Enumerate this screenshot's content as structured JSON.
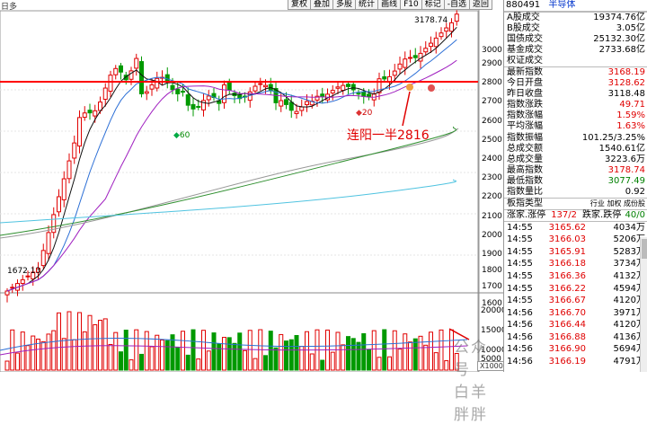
{
  "toolbar": {
    "items": [
      "复权",
      "叠加",
      "多股",
      "统计",
      "画线",
      "F10",
      "标记",
      "-自选",
      "返回"
    ]
  },
  "chart": {
    "top_left_label": "日多",
    "high_label": "3178.74",
    "low_label": "1672.13",
    "annotation": "连阳一半2816",
    "marks": [
      "60",
      "20"
    ],
    "volume_unit": "X1000",
    "price_ticks": [
      "3000",
      "2900",
      "2800",
      "2700",
      "2600",
      "2500",
      "2400",
      "2300",
      "2200",
      "2100",
      "2000",
      "1900",
      "1800",
      "1700",
      "1600"
    ],
    "volume_ticks": [
      "20000",
      "15000",
      "10000",
      "5000"
    ],
    "watermark": "公众号 · 白羊胖胖",
    "colors": {
      "up": "#e00000",
      "down": "#009900",
      "ma5": "#111111",
      "ma10": "#2c6fd6",
      "ma20": "#a020c0",
      "ma60": "#999999",
      "ma120": "#2f8f2f",
      "ma250": "#4fc3e0",
      "ref_line": "#ff0000"
    }
  },
  "panel": {
    "code": "880491",
    "name": "半导体",
    "rows1": [
      {
        "label": "A股成交",
        "value": "19374.76亿",
        "cls": ""
      },
      {
        "label": "B股成交",
        "value": "3.05亿",
        "cls": ""
      },
      {
        "label": "国债成交",
        "value": "25132.30亿",
        "cls": ""
      },
      {
        "label": "基金成交",
        "value": "2733.68亿",
        "cls": ""
      },
      {
        "label": "权证成交",
        "value": "",
        "cls": ""
      }
    ],
    "rows2": [
      {
        "label": "最新指数",
        "value": "3168.19",
        "cls": "red"
      },
      {
        "label": "今日开盘",
        "value": "3128.62",
        "cls": "red"
      },
      {
        "label": "昨日收盘",
        "value": "3118.48",
        "cls": ""
      },
      {
        "label": "指数涨跌",
        "value": "49.71",
        "cls": "red"
      },
      {
        "label": "指数涨幅",
        "value": "1.59%",
        "cls": "red"
      },
      {
        "label": "平均涨幅",
        "value": "1.63%",
        "cls": "red"
      },
      {
        "label": "指数振幅",
        "value": "101.25/3.25%",
        "cls": ""
      },
      {
        "label": "总成交额",
        "value": "1540.61亿",
        "cls": ""
      },
      {
        "label": "总成交量",
        "value": "3223.6万",
        "cls": ""
      },
      {
        "label": "最高指数",
        "value": "3178.74",
        "cls": "red"
      },
      {
        "label": "最低指数",
        "value": "3077.49",
        "cls": "green"
      },
      {
        "label": "指数量比",
        "value": "0.92",
        "cls": ""
      }
    ],
    "board_type": {
      "label": "板指类型",
      "options": "行业 加权 成份股"
    },
    "stats": {
      "rise_label": "涨家.涨停",
      "rise_value": "137/2",
      "fall_label": "跌家.跌停",
      "fall_value": "40/0"
    },
    "ticks": [
      {
        "time": "14:55",
        "price": "3165.62",
        "vol": "4034万"
      },
      {
        "time": "14:55",
        "price": "3166.03",
        "vol": "5206万"
      },
      {
        "time": "14:55",
        "price": "3165.91",
        "vol": "5283万"
      },
      {
        "time": "14:55",
        "price": "3166.18",
        "vol": "3734万"
      },
      {
        "time": "14:55",
        "price": "3166.36",
        "vol": "4132万"
      },
      {
        "time": "14:55",
        "price": "3166.22",
        "vol": "4594万"
      },
      {
        "time": "14:55",
        "price": "3166.67",
        "vol": "4120万"
      },
      {
        "time": "14:56",
        "price": "3166.70",
        "vol": "3971万"
      },
      {
        "time": "14:56",
        "price": "3166.44",
        "vol": "4120万"
      },
      {
        "time": "14:56",
        "price": "3166.88",
        "vol": "4136万"
      },
      {
        "time": "14:56",
        "price": "3166.90",
        "vol": "5694万"
      },
      {
        "time": "14:56",
        "price": "3166.19",
        "vol": "4791万"
      }
    ]
  }
}
